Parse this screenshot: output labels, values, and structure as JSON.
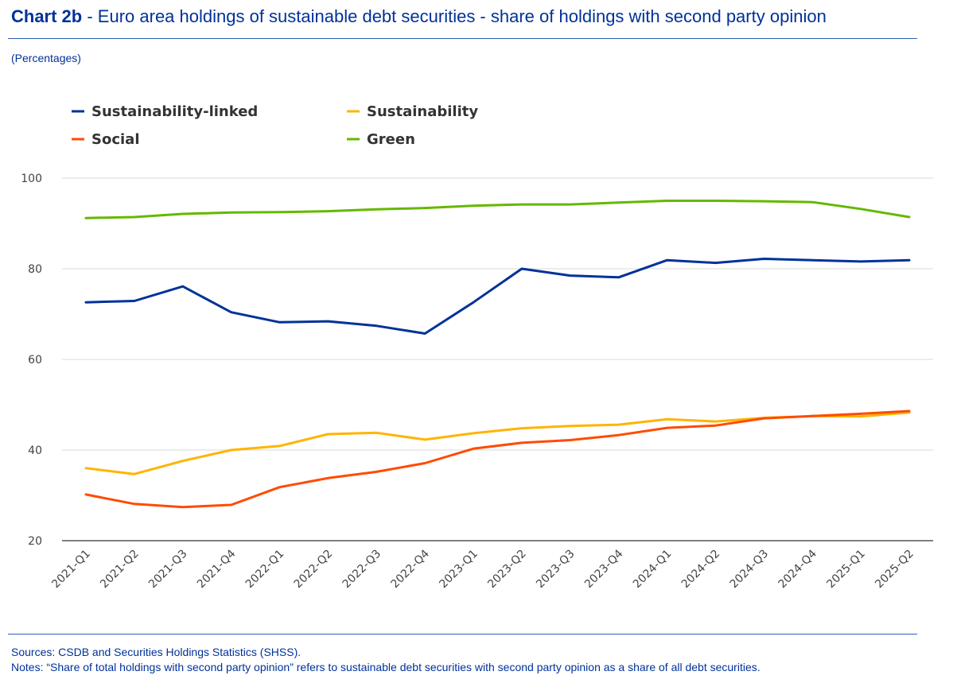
{
  "header": {
    "title_bold": "Chart 2b",
    "title_rest": " - Euro area holdings of sustainable debt securities - share of holdings with second party opinion",
    "subtitle": "(Percentages)"
  },
  "footer": {
    "sources": "Sources: CSDB and Securities Holdings Statistics (SHSS).",
    "notes": "Notes: “Share of total holdings with second party opinion” refers to sustainable debt securities with second party opinion as a share of all debt securities."
  },
  "chart_data": {
    "type": "line",
    "title": "Euro area holdings of sustainable debt securities - share of holdings with second party opinion",
    "ylabel": "(Percentages)",
    "xlabel": "",
    "ylim": [
      20,
      100
    ],
    "yticks": [
      20,
      40,
      60,
      80,
      100
    ],
    "grid": true,
    "legend_position": "top-left",
    "categories": [
      "2021-Q1",
      "2021-Q2",
      "2021-Q3",
      "2021-Q4",
      "2022-Q1",
      "2022-Q2",
      "2022-Q3",
      "2022-Q4",
      "2023-Q1",
      "2023-Q2",
      "2023-Q3",
      "2023-Q4",
      "2024-Q1",
      "2024-Q2",
      "2024-Q3",
      "2024-Q4",
      "2025-Q1",
      "2025-Q2"
    ],
    "series": [
      {
        "name": "Sustainability-linked",
        "color": "#003299",
        "values": [
          72.6,
          72.9,
          76.1,
          70.4,
          68.2,
          68.4,
          67.4,
          65.7,
          72.6,
          80.0,
          78.5,
          78.1,
          81.9,
          81.3,
          82.2,
          81.9,
          81.6,
          81.9
        ]
      },
      {
        "name": "Sustainability",
        "color": "#ffb400",
        "values": [
          36.0,
          34.7,
          37.6,
          40.0,
          40.9,
          43.5,
          43.8,
          42.3,
          43.7,
          44.8,
          45.3,
          45.6,
          46.8,
          46.3,
          47.1,
          47.5,
          47.4,
          48.3
        ]
      },
      {
        "name": "Social",
        "color": "#ff4b00",
        "values": [
          30.2,
          28.1,
          27.4,
          27.9,
          31.8,
          33.8,
          35.2,
          37.1,
          40.3,
          41.6,
          42.2,
          43.3,
          44.9,
          45.4,
          47.0,
          47.5,
          48.0,
          48.6
        ]
      },
      {
        "name": "Green",
        "color": "#65b800",
        "values": [
          91.2,
          91.4,
          92.1,
          92.4,
          92.5,
          92.7,
          93.1,
          93.4,
          93.9,
          94.2,
          94.2,
          94.6,
          95.0,
          95.0,
          94.9,
          94.7,
          93.2,
          91.4
        ]
      }
    ]
  }
}
